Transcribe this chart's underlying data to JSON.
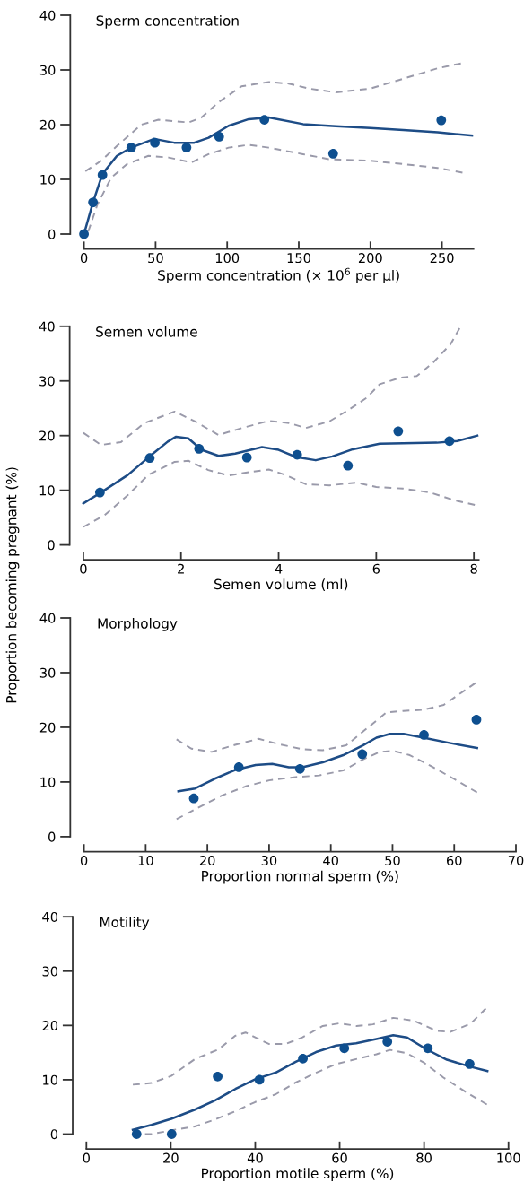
{
  "chart_data": [
    {
      "type": "scatter",
      "title": "Sperm concentration",
      "xlabel": "Sperm concentration (× 10$^{6}$ per µl)",
      "xlim": [
        0,
        272
      ],
      "xticks": [
        0,
        50,
        100,
        150,
        200,
        250
      ],
      "ylim": [
        0,
        40
      ],
      "yticks": [
        0,
        10,
        20,
        30,
        40
      ],
      "grid": false,
      "series": [
        {
          "color": "#0e4f8f",
          "marker": "circle",
          "x": [
            0,
            6.3,
            12.9,
            33,
            49.5,
            71.6,
            94.4,
            126,
            174,
            249.5
          ],
          "values": [
            0,
            5.8,
            10.8,
            15.8,
            16.7,
            15.8,
            17.8,
            20.9,
            14.7,
            20.8
          ]
        },
        {
          "type": "line",
          "color": "#1d4c86",
          "line_style": "solid",
          "x": [
            0,
            6.3,
            12.9,
            23,
            33,
            49,
            63,
            77,
            87,
            101,
            115,
            129,
            153,
            176,
            200,
            223,
            247,
            271
          ],
          "values": [
            0,
            5.8,
            11,
            14.3,
            15.8,
            17.4,
            16.7,
            16.7,
            17.6,
            19.8,
            21,
            21.3,
            20.1,
            19.7,
            19.4,
            19,
            18.6,
            18
          ]
        },
        {
          "type": "line",
          "color": "#9a9aaa",
          "line_style": "dashed",
          "x": [
            1,
            12,
            23,
            40,
            52,
            73,
            82,
            94,
            110,
            129,
            143,
            157,
            176,
            200,
            223,
            247,
            265
          ],
          "values": [
            11.5,
            13.4,
            16.1,
            20,
            20.9,
            20.4,
            21.3,
            24.1,
            27,
            27.8,
            27.5,
            26.6,
            25.9,
            26.6,
            28.4,
            30.3,
            31.3
          ]
        },
        {
          "type": "line",
          "color": "#9a9aaa",
          "line_style": "dashed",
          "x": [
            3,
            9.4,
            19,
            30,
            45,
            59,
            75,
            87,
            101,
            115,
            129,
            153,
            171,
            200,
            223,
            247,
            265
          ],
          "values": [
            0.5,
            5.4,
            10.3,
            12.8,
            14.3,
            14,
            13.1,
            14.6,
            15.8,
            16.3,
            15.8,
            14.6,
            13.7,
            13.4,
            12.8,
            12.1,
            11.2
          ]
        }
      ]
    },
    {
      "type": "scatter",
      "title": "Semen volume",
      "xlabel": "Semen volume (ml)",
      "xlim": [
        0,
        8.1
      ],
      "xticks": [
        0,
        2,
        4,
        6,
        8
      ],
      "ylim": [
        0,
        40
      ],
      "yticks": [
        0,
        10,
        20,
        30,
        40
      ],
      "grid": false,
      "series": [
        {
          "color": "#0e4f8f",
          "marker": "circle",
          "x": [
            0.34,
            1.36,
            2.37,
            3.35,
            4.38,
            5.42,
            6.45,
            7.5
          ],
          "values": [
            9.6,
            15.9,
            17.6,
            16,
            16.5,
            14.5,
            20.8,
            19
          ]
        },
        {
          "type": "line",
          "color": "#1d4c86",
          "line_style": "solid",
          "x": [
            0,
            0.36,
            0.91,
            1.33,
            1.73,
            1.9,
            2.15,
            2.42,
            2.77,
            3.11,
            3.66,
            4.0,
            4.35,
            4.76,
            5.1,
            5.52,
            6.07,
            6.55,
            7.24,
            7.66,
            8.07
          ],
          "values": [
            7.6,
            9.6,
            12.8,
            16,
            18.9,
            19.8,
            19.5,
            17.4,
            16.3,
            16.7,
            17.9,
            17.4,
            16.1,
            15.5,
            16.2,
            17.5,
            18.5,
            18.6,
            18.7,
            19,
            20
          ]
        },
        {
          "type": "line",
          "color": "#9a9aaa",
          "line_style": "dashed",
          "x": [
            0,
            0.36,
            0.77,
            1.25,
            1.87,
            2.29,
            2.77,
            3.25,
            3.8,
            4.21,
            4.56,
            5.04,
            5.45,
            5.8,
            6.07,
            6.49,
            6.83,
            7.17,
            7.52,
            7.73
          ],
          "values": [
            20.5,
            18.3,
            18.8,
            22.3,
            24.4,
            22.6,
            20.1,
            21.4,
            22.7,
            22.3,
            21.4,
            22.6,
            24.8,
            26.9,
            29.4,
            30.6,
            30.9,
            33.4,
            36.7,
            40
          ]
        },
        {
          "type": "line",
          "color": "#9a9aaa",
          "line_style": "dashed",
          "x": [
            0,
            0.43,
            0.91,
            1.33,
            1.87,
            2.15,
            2.56,
            2.97,
            3.46,
            3.8,
            4.14,
            4.56,
            5.04,
            5.59,
            6.0,
            6.55,
            7.1,
            7.59,
            8.07
          ],
          "values": [
            3.3,
            5.4,
            9.1,
            12.8,
            15.2,
            15.4,
            13.7,
            12.7,
            13.4,
            13.8,
            12.8,
            11.1,
            10.9,
            11.4,
            10.6,
            10.3,
            9.6,
            8.2,
            7.2
          ]
        }
      ]
    },
    {
      "type": "scatter",
      "title": "Morphology",
      "xlabel": "Proportion normal sperm (%)",
      "ylabel": "Proportion becoming pregnant (%)",
      "xlim": [
        0,
        70
      ],
      "xticks": [
        0,
        10,
        20,
        30,
        40,
        50,
        60,
        70
      ],
      "ylim": [
        0,
        40
      ],
      "yticks": [
        0,
        10,
        20,
        30,
        40
      ],
      "grid": false,
      "series": [
        {
          "color": "#0e4f8f",
          "marker": "circle",
          "x": [
            17.8,
            25.1,
            35,
            45.1,
            55.1,
            63.6
          ],
          "values": [
            7,
            12.7,
            12.4,
            15.1,
            18.6,
            21.4
          ]
        },
        {
          "type": "line",
          "color": "#1d4c86",
          "line_style": "solid",
          "x": [
            15.3,
            18,
            21.2,
            24.5,
            27.8,
            30.5,
            33.2,
            35.4,
            38.7,
            42,
            45.2,
            47.4,
            49.6,
            51.8,
            55,
            59.4,
            63.7
          ],
          "values": [
            8.3,
            8.8,
            10.6,
            12.2,
            13.1,
            13.3,
            12.7,
            12.7,
            13.6,
            14.9,
            16.7,
            18.1,
            18.8,
            18.8,
            18.1,
            17.1,
            16.2
          ]
        },
        {
          "type": "line",
          "color": "#9a9aaa",
          "line_style": "dashed",
          "x": [
            15,
            17.4,
            20.7,
            24.5,
            28.3,
            31.6,
            35.4,
            38.7,
            42.5,
            45.2,
            49,
            51.7,
            55,
            58.3,
            63.7
          ],
          "values": [
            17.8,
            16.1,
            15.5,
            16.8,
            17.9,
            16.9,
            16,
            15.8,
            16.7,
            19.2,
            22.7,
            23,
            23.2,
            24.1,
            28.3
          ]
        },
        {
          "type": "line",
          "color": "#9a9aaa",
          "line_style": "dashed",
          "x": [
            15,
            18.5,
            22.3,
            26.2,
            30,
            34.3,
            38.1,
            42,
            45.2,
            47.9,
            50.1,
            52.8,
            56.1,
            59.9,
            63.7
          ],
          "values": [
            3.2,
            5.3,
            7.5,
            9.2,
            10.3,
            10.9,
            11.2,
            12.1,
            14.1,
            15.5,
            15.7,
            14.9,
            13,
            10.6,
            8.1
          ]
        }
      ]
    },
    {
      "type": "scatter",
      "title": "Motility",
      "xlabel": "Proportion motile sperm (%)",
      "xlim": [
        0,
        100
      ],
      "xticks": [
        0,
        20,
        40,
        60,
        80,
        100
      ],
      "ylim": [
        0,
        40
      ],
      "yticks": [
        0,
        10,
        20,
        30,
        40
      ],
      "grid": false,
      "series": [
        {
          "color": "#0e4f8f",
          "marker": "circle",
          "x": [
            11.9,
            20.2,
            31.1,
            41,
            51.3,
            61.1,
            71.3,
            80.9,
            90.8
          ],
          "values": [
            0,
            0,
            10.6,
            10,
            13.9,
            15.8,
            17,
            15.8,
            12.9
          ]
        },
        {
          "type": "line",
          "color": "#1d4c86",
          "line_style": "solid",
          "x": [
            11,
            15.4,
            20.1,
            25.7,
            30.5,
            35.3,
            40,
            44.8,
            49.6,
            54.4,
            59.2,
            63.9,
            68.7,
            72.7,
            75.9,
            80.6,
            85.4,
            91,
            95
          ],
          "values": [
            0.8,
            1.7,
            2.8,
            4.5,
            6.2,
            8.3,
            10.1,
            11.3,
            13.3,
            15.1,
            16.3,
            16.7,
            17.5,
            18.2,
            17.8,
            15.6,
            13.7,
            12.4,
            11.6
          ]
        },
        {
          "type": "line",
          "color": "#9a9aaa",
          "line_style": "dashed",
          "x": [
            11,
            15.4,
            20.1,
            25.7,
            31.3,
            35.3,
            37.7,
            40,
            43.2,
            47.2,
            51.2,
            56,
            60,
            64,
            67.9,
            72.7,
            77.5,
            83,
            86.2,
            91,
            95
          ],
          "values": [
            9.1,
            9.4,
            10.7,
            13.8,
            15.6,
            18.1,
            18.7,
            17.8,
            16.6,
            16.6,
            17.8,
            19.9,
            20.4,
            19.9,
            20.2,
            21.4,
            20.9,
            19,
            18.8,
            20.3,
            23.4
          ]
        },
        {
          "type": "line",
          "color": "#9a9aaa",
          "line_style": "dashed",
          "x": [
            11,
            15.4,
            20.9,
            25.7,
            30.5,
            35.3,
            40,
            44.8,
            49.6,
            54.4,
            59.2,
            63.9,
            68.7,
            71.9,
            75.9,
            79.9,
            84.6,
            90.2,
            95
          ],
          "values": [
            0,
            0,
            0.8,
            1.4,
            2.7,
            4.2,
            5.9,
            7.3,
            9.5,
            11.3,
            12.9,
            13.8,
            14.7,
            15.5,
            14.9,
            13.2,
            10.4,
            7.6,
            5.4
          ]
        }
      ]
    }
  ]
}
